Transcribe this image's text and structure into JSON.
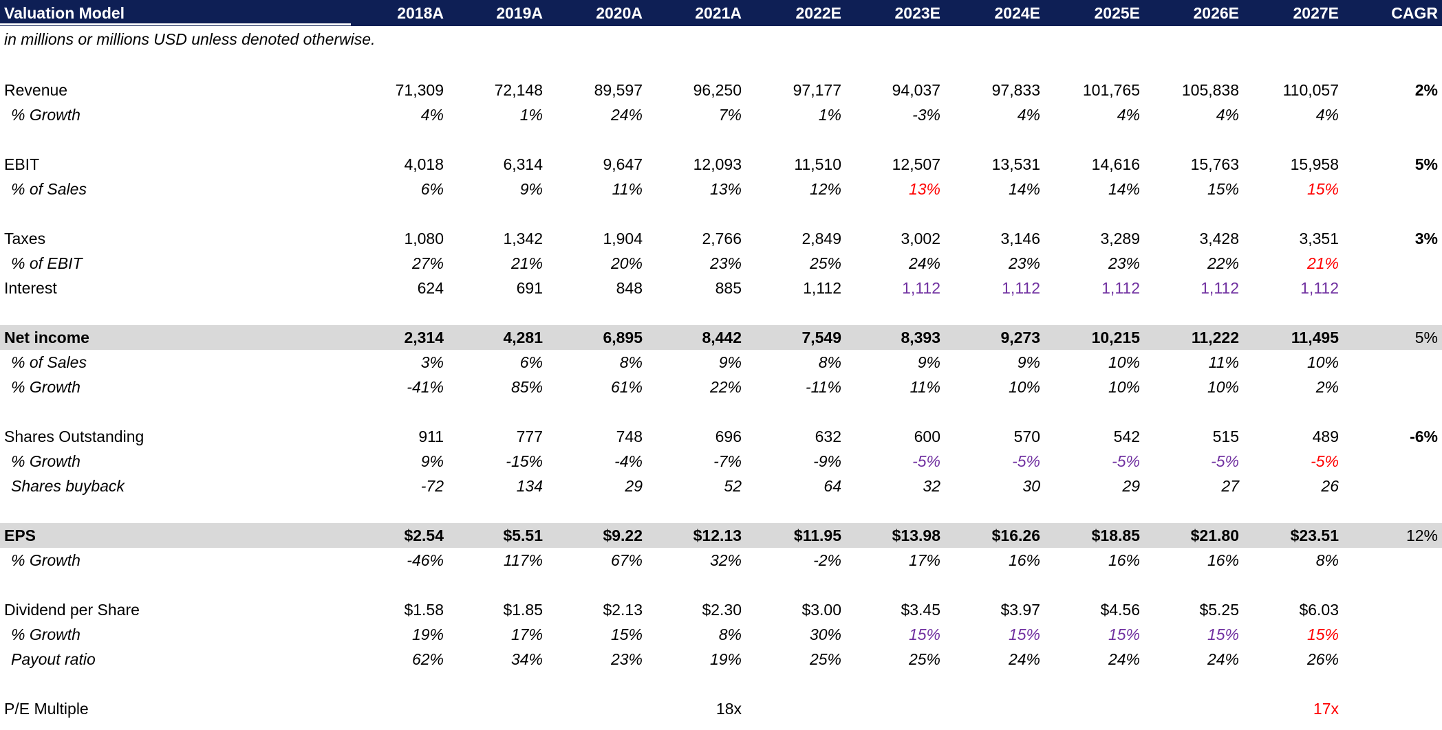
{
  "header": {
    "title": "Valuation Model",
    "years": [
      "2018A",
      "2019A",
      "2020A",
      "2021A",
      "2022E",
      "2023E",
      "2024E",
      "2025E",
      "2026E",
      "2027E"
    ],
    "cagr_label": "CAGR"
  },
  "note": "in millions or millions USD unless denoted otherwise.",
  "colors": {
    "header_bg": "#0e1f55",
    "shaded_row": "#d9d9d9",
    "assumption_purple": "#7030a0",
    "highlight_red": "#ff0000"
  },
  "rows": {
    "revenue": {
      "label": "Revenue",
      "values": [
        "71,309",
        "72,148",
        "89,597",
        "96,250",
        "97,177",
        "94,037",
        "97,833",
        "101,765",
        "105,838",
        "110,057"
      ],
      "cagr": "2%"
    },
    "revenue_growth": {
      "label": "% Growth",
      "values": [
        "4%",
        "1%",
        "24%",
        "7%",
        "1%",
        "-3%",
        "4%",
        "4%",
        "4%",
        "4%"
      ]
    },
    "ebit": {
      "label": "EBIT",
      "values": [
        "4,018",
        "6,314",
        "9,647",
        "12,093",
        "11,510",
        "12,507",
        "13,531",
        "14,616",
        "15,763",
        "15,958"
      ],
      "cagr": "5%"
    },
    "ebit_pct_sales": {
      "label": "% of Sales",
      "values": [
        "6%",
        "9%",
        "11%",
        "13%",
        "12%",
        "13%",
        "14%",
        "14%",
        "15%",
        "15%"
      ]
    },
    "taxes": {
      "label": "Taxes",
      "values": [
        "1,080",
        "1,342",
        "1,904",
        "2,766",
        "2,849",
        "3,002",
        "3,146",
        "3,289",
        "3,428",
        "3,351"
      ],
      "cagr": "3%"
    },
    "taxes_pct_ebit": {
      "label": "% of EBIT",
      "values": [
        "27%",
        "21%",
        "20%",
        "23%",
        "25%",
        "24%",
        "23%",
        "23%",
        "22%",
        "21%"
      ]
    },
    "interest": {
      "label": "Interest",
      "values": [
        "624",
        "691",
        "848",
        "885",
        "1,112",
        "1,112",
        "1,112",
        "1,112",
        "1,112",
        "1,112"
      ]
    },
    "net_income": {
      "label": "Net income",
      "values": [
        "2,314",
        "4,281",
        "6,895",
        "8,442",
        "7,549",
        "8,393",
        "9,273",
        "10,215",
        "11,222",
        "11,495"
      ],
      "cagr": "5%"
    },
    "ni_pct_sales": {
      "label": "% of Sales",
      "values": [
        "3%",
        "6%",
        "8%",
        "9%",
        "8%",
        "9%",
        "9%",
        "10%",
        "11%",
        "10%"
      ]
    },
    "ni_growth": {
      "label": "% Growth",
      "values": [
        "-41%",
        "85%",
        "61%",
        "22%",
        "-11%",
        "11%",
        "10%",
        "10%",
        "10%",
        "2%"
      ]
    },
    "shares": {
      "label": "Shares Outstanding",
      "values": [
        "911",
        "777",
        "748",
        "696",
        "632",
        "600",
        "570",
        "542",
        "515",
        "489"
      ],
      "cagr": "-6%"
    },
    "shares_growth": {
      "label": "% Growth",
      "values": [
        "9%",
        "-15%",
        "-4%",
        "-7%",
        "-9%",
        "-5%",
        "-5%",
        "-5%",
        "-5%",
        "-5%"
      ]
    },
    "buyback": {
      "label": "Shares buyback",
      "values": [
        "-72",
        "134",
        "29",
        "52",
        "64",
        "32",
        "30",
        "29",
        "27",
        "26"
      ]
    },
    "eps": {
      "label": "EPS",
      "values": [
        "$2.54",
        "$5.51",
        "$9.22",
        "$12.13",
        "$11.95",
        "$13.98",
        "$16.26",
        "$18.85",
        "$21.80",
        "$23.51"
      ],
      "cagr": "12%"
    },
    "eps_growth": {
      "label": "% Growth",
      "values": [
        "-46%",
        "117%",
        "67%",
        "32%",
        "-2%",
        "17%",
        "16%",
        "16%",
        "16%",
        "8%"
      ]
    },
    "dps": {
      "label": "Dividend per Share",
      "values": [
        "$1.58",
        "$1.85",
        "$2.13",
        "$2.30",
        "$3.00",
        "$3.45",
        "$3.97",
        "$4.56",
        "$5.25",
        "$6.03"
      ]
    },
    "dps_growth": {
      "label": "% Growth",
      "values": [
        "19%",
        "17%",
        "15%",
        "8%",
        "30%",
        "15%",
        "15%",
        "15%",
        "15%",
        "15%"
      ]
    },
    "payout": {
      "label": "Payout ratio",
      "values": [
        "62%",
        "34%",
        "23%",
        "19%",
        "25%",
        "25%",
        "24%",
        "24%",
        "24%",
        "26%"
      ]
    },
    "pe": {
      "label": "P/E Multiple",
      "values": [
        "",
        "",
        "",
        "18x",
        "",
        "",
        "",
        "",
        "",
        "17x"
      ]
    }
  }
}
